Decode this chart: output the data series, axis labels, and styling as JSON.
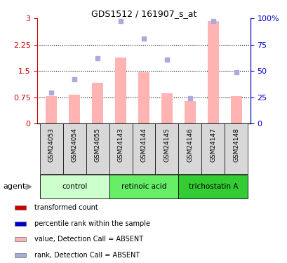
{
  "title": "GDS1512 / 161907_s_at",
  "samples": [
    "GSM24053",
    "GSM24054",
    "GSM24055",
    "GSM24143",
    "GSM24144",
    "GSM24145",
    "GSM24146",
    "GSM24147",
    "GSM24148"
  ],
  "bar_values": [
    0.78,
    0.82,
    1.17,
    1.88,
    1.47,
    0.87,
    0.65,
    2.92,
    0.78
  ],
  "scatter_values_left": [
    0.88,
    1.27,
    1.87,
    2.92,
    2.42,
    1.82,
    0.72,
    2.92,
    1.47
  ],
  "bar_color": "#ffb3b3",
  "scatter_color": "#aaaadd",
  "yticks_left": [
    0,
    0.75,
    1.5,
    2.25,
    3.0
  ],
  "ytick_labels_left": [
    "0",
    "0.75",
    "1.5",
    "2.25",
    "3"
  ],
  "yticks_right": [
    0,
    25,
    50,
    75,
    100
  ],
  "ytick_labels_right": [
    "0",
    "25",
    "50",
    "75",
    "100%"
  ],
  "ylim_left": [
    0,
    3.0
  ],
  "ylim_right": [
    0,
    100
  ],
  "hlines": [
    0.75,
    1.5,
    2.25
  ],
  "groups": [
    {
      "label": "control",
      "span": [
        0,
        2
      ],
      "color": "#ccffcc"
    },
    {
      "label": "retinoic acid",
      "span": [
        3,
        5
      ],
      "color": "#66ee66"
    },
    {
      "label": "trichostatin A",
      "span": [
        6,
        8
      ],
      "color": "#33cc33"
    }
  ],
  "agent_label": "agent",
  "legend_items": [
    {
      "color": "#cc0000",
      "label": "transformed count"
    },
    {
      "color": "#0000cc",
      "label": "percentile rank within the sample"
    },
    {
      "color": "#ffb3b3",
      "label": "value, Detection Call = ABSENT"
    },
    {
      "color": "#aaaadd",
      "label": "rank, Detection Call = ABSENT"
    }
  ],
  "left_axis_color": "#cc0000",
  "right_axis_color": "#0000cc",
  "bar_width": 0.5
}
